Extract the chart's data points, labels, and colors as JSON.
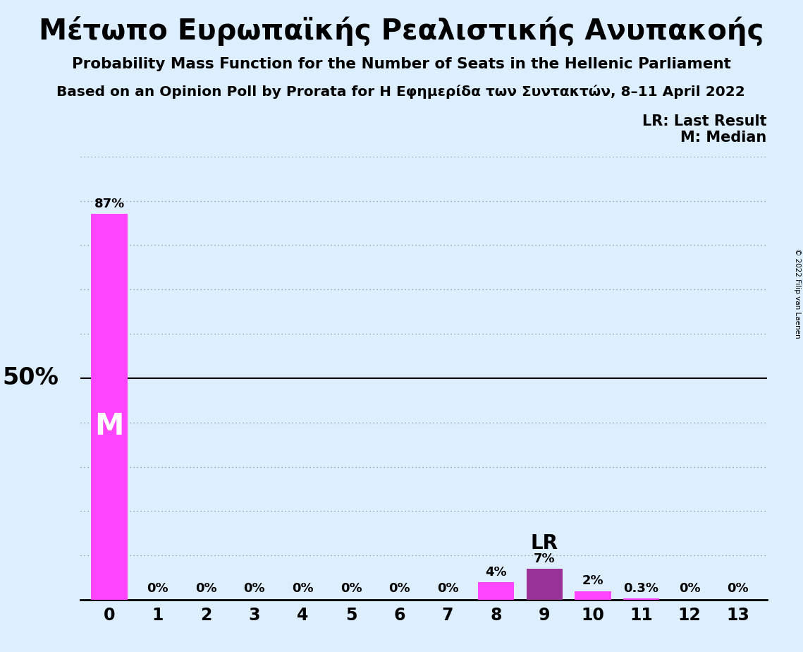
{
  "title_greek": "Μέτωπο Ευρωπαϊκής Ρεαλιστικής Ανυπακοής",
  "subtitle1": "Probability Mass Function for the Number of Seats in the Hellenic Parliament",
  "subtitle2": "Based on an Opinion Poll by Prorata for Η Εφημερίδα των Συντακτών, 8–11 April 2022",
  "copyright": "© 2022 Filip van Laenen",
  "categories": [
    0,
    1,
    2,
    3,
    4,
    5,
    6,
    7,
    8,
    9,
    10,
    11,
    12,
    13
  ],
  "values": [
    87,
    0,
    0,
    0,
    0,
    0,
    0,
    0,
    4,
    7,
    2,
    0.3,
    0,
    0
  ],
  "bar_colors": [
    "#ff44ff",
    "#ff44ff",
    "#ff44ff",
    "#ff44ff",
    "#ff44ff",
    "#ff44ff",
    "#ff44ff",
    "#ff44ff",
    "#ff44ff",
    "#993399",
    "#ff44ff",
    "#ff44ff",
    "#ff44ff",
    "#ff44ff"
  ],
  "bar_labels": [
    "87%",
    "0%",
    "0%",
    "0%",
    "0%",
    "0%",
    "0%",
    "0%",
    "4%",
    "7%",
    "2%",
    "0.3%",
    "0%",
    "0%"
  ],
  "median_bar_idx": 0,
  "lr_bar_idx": 9,
  "ylim_max": 100,
  "yticks": [
    0,
    10,
    20,
    30,
    40,
    50,
    60,
    70,
    80,
    90,
    100
  ],
  "y50_label": "50%",
  "background_color": "#ddeeff",
  "bar_color_main": "#ff44ff",
  "bar_color_lr": "#993399",
  "legend_lr": "LR: Last Result",
  "legend_m": "M: Median",
  "median_label": "M",
  "lr_label": "LR",
  "bar_width": 0.75
}
